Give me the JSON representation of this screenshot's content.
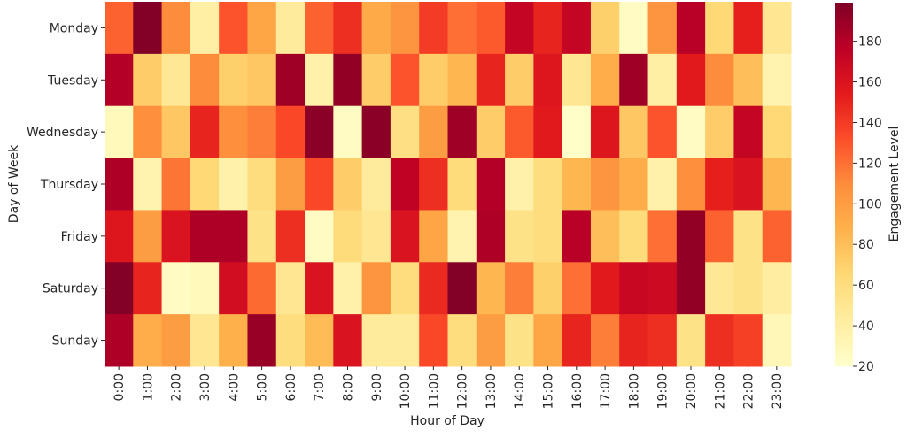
{
  "chart_data": {
    "type": "heatmap",
    "title": "",
    "xlabel": "Hour of Day",
    "ylabel": "Day of Week",
    "colorbar_label": "Engagement Level",
    "colormap": "YlOrRd",
    "colormap_stops": [
      "#ffffcc",
      "#ffeda0",
      "#fed976",
      "#feb24c",
      "#fd8d3c",
      "#fc4e2a",
      "#e31a1c",
      "#bd0026",
      "#800026"
    ],
    "value_range": [
      20,
      199
    ],
    "colorbar_ticks": [
      20,
      40,
      60,
      80,
      100,
      120,
      140,
      160,
      180
    ],
    "x_categories": [
      "0:00",
      "1:00",
      "2:00",
      "3:00",
      "4:00",
      "5:00",
      "6:00",
      "7:00",
      "8:00",
      "9:00",
      "10:00",
      "11:00",
      "12:00",
      "13:00",
      "14:00",
      "15:00",
      "16:00",
      "17:00",
      "18:00",
      "19:00",
      "20:00",
      "21:00",
      "22:00",
      "23:00"
    ],
    "y_categories": [
      "Monday",
      "Tuesday",
      "Wednesday",
      "Thursday",
      "Friday",
      "Saturday",
      "Sunday"
    ],
    "values": [
      [
        125,
        198,
        110,
        40,
        130,
        95,
        45,
        125,
        145,
        92,
        105,
        140,
        120,
        128,
        172,
        150,
        172,
        70,
        25,
        105,
        178,
        65,
        152,
        50
      ],
      [
        180,
        72,
        48,
        110,
        70,
        75,
        188,
        38,
        192,
        72,
        130,
        72,
        85,
        150,
        72,
        158,
        50,
        90,
        188,
        40,
        155,
        110,
        80,
        35
      ],
      [
        28,
        108,
        75,
        150,
        108,
        115,
        135,
        195,
        25,
        195,
        58,
        100,
        188,
        72,
        128,
        155,
        22,
        158,
        75,
        130,
        25,
        72,
        172,
        65
      ],
      [
        182,
        35,
        118,
        65,
        38,
        60,
        100,
        135,
        72,
        45,
        175,
        145,
        62,
        180,
        38,
        60,
        85,
        105,
        90,
        38,
        108,
        152,
        160,
        85
      ],
      [
        158,
        100,
        160,
        182,
        182,
        55,
        145,
        25,
        62,
        50,
        160,
        95,
        35,
        182,
        55,
        60,
        178,
        80,
        62,
        120,
        192,
        125,
        55,
        125
      ],
      [
        198,
        150,
        25,
        28,
        165,
        122,
        50,
        160,
        38,
        105,
        60,
        148,
        198,
        85,
        115,
        70,
        120,
        155,
        170,
        168,
        192,
        48,
        55,
        42
      ],
      [
        182,
        90,
        100,
        50,
        88,
        190,
        60,
        82,
        160,
        45,
        45,
        135,
        60,
        100,
        55,
        95,
        150,
        115,
        150,
        145,
        55,
        145,
        138,
        30
      ]
    ]
  }
}
